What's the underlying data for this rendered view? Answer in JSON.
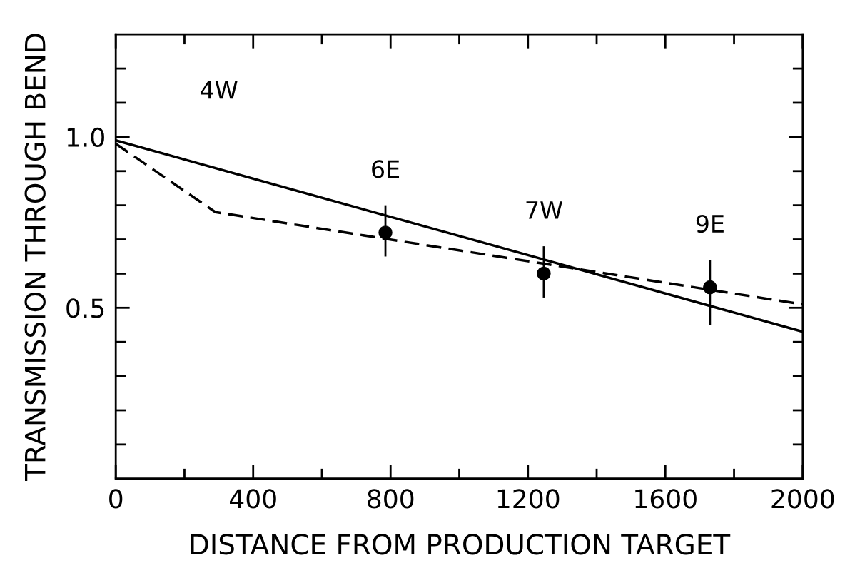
{
  "chart_data": {
    "type": "scatter",
    "xlabel": "DISTANCE FROM PRODUCTION TARGET",
    "ylabel": "TRANSMISSION THROUGH BEND",
    "xlim": [
      0,
      2000
    ],
    "ylim": [
      0,
      1.3
    ],
    "xticks": [
      0,
      {
        "value": 200,
        "label": null
      },
      400,
      {
        "value": 600,
        "label": null
      },
      800,
      {
        "value": 1000,
        "label": null
      },
      1200,
      {
        "value": 1400,
        "label": null
      },
      1600,
      {
        "value": 1800,
        "label": null
      },
      2000
    ],
    "yticks": [
      {
        "value": 0.1,
        "label": null
      },
      {
        "value": 0.2,
        "label": null
      },
      {
        "value": 0.3,
        "label": null
      },
      {
        "value": 0.4,
        "label": null
      },
      {
        "value": 0.5,
        "label": "0.5"
      },
      {
        "value": 0.6,
        "label": null
      },
      {
        "value": 0.7,
        "label": null
      },
      {
        "value": 0.8,
        "label": null
      },
      {
        "value": 0.9,
        "label": null
      },
      {
        "value": 1.0,
        "label": "1.0"
      },
      {
        "value": 1.1,
        "label": null
      },
      {
        "value": 1.2,
        "label": null
      }
    ],
    "grid": false,
    "legend": false,
    "series": [
      {
        "color": "#000000",
        "marker": "circle",
        "x": [
          785,
          1246,
          1730
        ],
        "values": [
          0.72,
          0.6,
          0.56
        ],
        "errors": [
          [
            0.65,
            0.8
          ],
          [
            0.53,
            0.68
          ],
          [
            0.45,
            0.64
          ]
        ]
      },
      {
        "type": "line",
        "color": "#000000",
        "line_style": "solid",
        "marker": "none",
        "x": [
          0,
          2000
        ],
        "values": [
          0.99,
          0.43
        ]
      },
      {
        "type": "line",
        "color": "#000000",
        "line_style": "dashed",
        "marker": "none",
        "x": [
          0,
          290,
          2000
        ],
        "values": [
          0.98,
          0.78,
          0.51
        ]
      }
    ],
    "annotations": [
      "4W",
      {
        "text": "6E",
        "x": 785,
        "y": 0.72
      },
      {
        "text": "7W",
        "x": 1246,
        "y": 0.6
      },
      {
        "text": "9E",
        "x": 1730,
        "y": 0.56
      }
    ]
  }
}
